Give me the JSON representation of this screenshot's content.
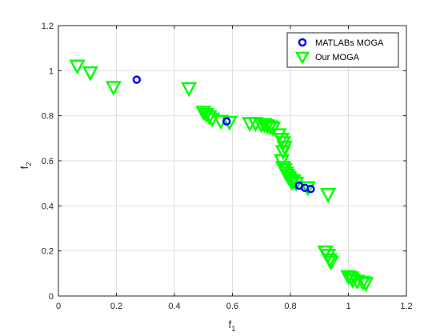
{
  "chart_data": {
    "type": "scatter",
    "title": "",
    "xlabel": {
      "base": "f",
      "sub": "1"
    },
    "ylabel": {
      "base": "f",
      "sub": "2"
    },
    "xlim": [
      0,
      1.2
    ],
    "ylim": [
      0,
      1.2
    ],
    "xticks": [
      "0",
      "0.2",
      "0.4",
      "0.6",
      "0.8",
      "1",
      "1.2"
    ],
    "yticks": [
      "0",
      "0.2",
      "0.4",
      "0.6",
      "0.8",
      "1",
      "1.2"
    ],
    "grid": true,
    "legend": "top-right",
    "series": [
      {
        "name": "MATLABs MOGA",
        "marker": "circle",
        "color": "#0000ff",
        "points": [
          [
            0.27,
            0.96
          ],
          [
            0.58,
            0.775
          ],
          [
            0.83,
            0.49
          ],
          [
            0.85,
            0.48
          ],
          [
            0.87,
            0.475
          ]
        ]
      },
      {
        "name": "Our MOGA",
        "marker": "triangle-down",
        "color": "#00ff00",
        "points": [
          [
            0.065,
            1.02
          ],
          [
            0.11,
            0.99
          ],
          [
            0.19,
            0.925
          ],
          [
            0.45,
            0.92
          ],
          [
            0.5,
            0.815
          ],
          [
            0.51,
            0.805
          ],
          [
            0.52,
            0.795
          ],
          [
            0.53,
            0.785
          ],
          [
            0.56,
            0.775
          ],
          [
            0.59,
            0.77
          ],
          [
            0.66,
            0.765
          ],
          [
            0.68,
            0.765
          ],
          [
            0.7,
            0.76
          ],
          [
            0.71,
            0.76
          ],
          [
            0.72,
            0.755
          ],
          [
            0.73,
            0.75
          ],
          [
            0.74,
            0.745
          ],
          [
            0.76,
            0.715
          ],
          [
            0.77,
            0.695
          ],
          [
            0.775,
            0.68
          ],
          [
            0.78,
            0.66
          ],
          [
            0.775,
            0.64
          ],
          [
            0.77,
            0.6
          ],
          [
            0.775,
            0.57
          ],
          [
            0.78,
            0.56
          ],
          [
            0.785,
            0.545
          ],
          [
            0.79,
            0.535
          ],
          [
            0.795,
            0.525
          ],
          [
            0.8,
            0.515
          ],
          [
            0.805,
            0.505
          ],
          [
            0.81,
            0.51
          ],
          [
            0.82,
            0.5
          ],
          [
            0.86,
            0.48
          ],
          [
            0.93,
            0.45
          ],
          [
            0.92,
            0.195
          ],
          [
            0.93,
            0.18
          ],
          [
            0.935,
            0.16
          ],
          [
            0.94,
            0.15
          ],
          [
            1.0,
            0.085
          ],
          [
            1.01,
            0.08
          ],
          [
            1.015,
            0.07
          ],
          [
            1.03,
            0.065
          ],
          [
            1.05,
            0.06
          ],
          [
            1.06,
            0.055
          ]
        ]
      }
    ]
  }
}
